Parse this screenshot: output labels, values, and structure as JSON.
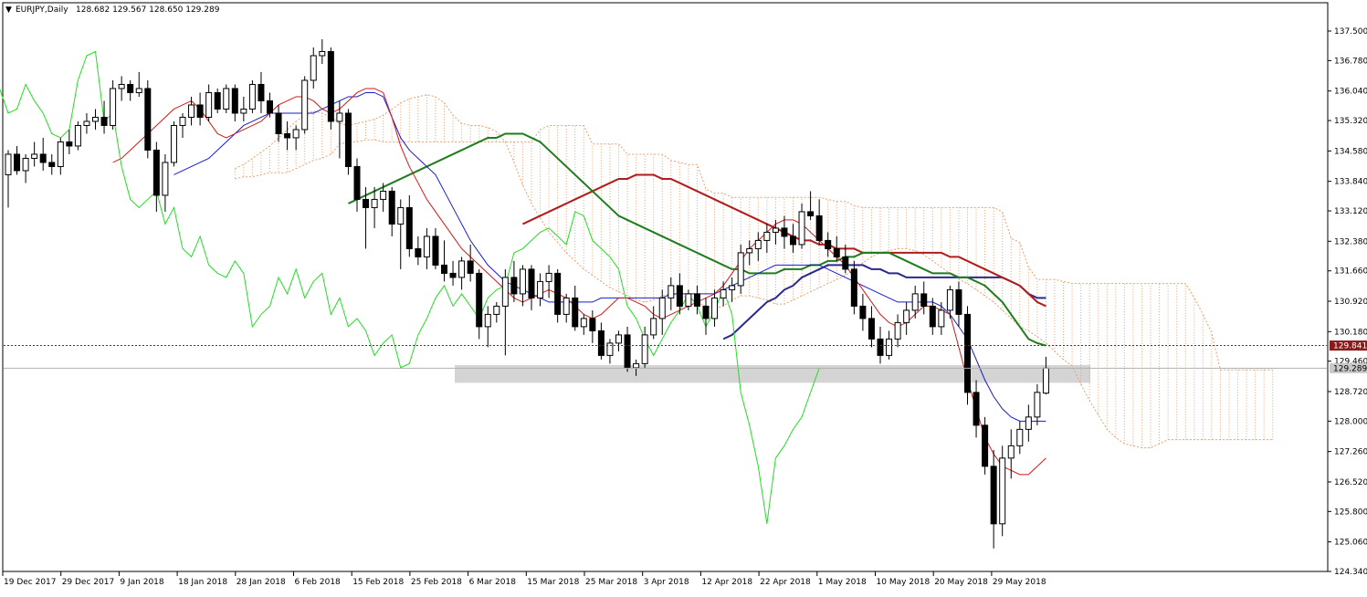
{
  "header": {
    "arrow": "▼",
    "symbol": "EURJPY,Daily",
    "ohlc": "128.682 129.567 128.650 129.289"
  },
  "price_scale": {
    "ticks": [
      "137.500",
      "136.780",
      "136.040",
      "135.320",
      "134.580",
      "133.840",
      "133.120",
      "132.380",
      "131.660",
      "130.920",
      "130.180",
      "129.460",
      "128.720",
      "128.000",
      "127.260",
      "126.520",
      "125.800",
      "125.060",
      "124.340"
    ],
    "ylim": [
      124.34,
      137.5
    ]
  },
  "time_scale": {
    "labels": [
      "19 Dec 2017",
      "29 Dec 2017",
      "9 Jan 2018",
      "18 Jan 2018",
      "28 Jan 2018",
      "6 Feb 2018",
      "15 Feb 2018",
      "25 Feb 2018",
      "6 Mar 2018",
      "15 Mar 2018",
      "25 Mar 2018",
      "3 Apr 2018",
      "12 Apr 2018",
      "22 Apr 2018",
      "1 May 2018",
      "10 May 2018",
      "20 May 2018",
      "29 May 2018"
    ]
  },
  "price_labels": {
    "ma_level": "129.841",
    "current": "129.289"
  },
  "colors": {
    "bull_body": "#ffffff",
    "bear_body": "#000000",
    "tenkan": "#d11a1a",
    "kijun": "#1a1ad1",
    "chikou": "#22dd22",
    "ma_fast": "#1e7d1e",
    "ma_mid": "#b01c1c",
    "ma_slow": "#2a2a8a",
    "cloud": "#e8a070",
    "support_zone": "#d4d4d4"
  },
  "chart_data": {
    "type": "candlestick",
    "ohlc": [
      [
        134.0,
        134.6,
        133.2,
        134.5
      ],
      [
        134.5,
        134.7,
        134.0,
        134.1
      ],
      [
        134.1,
        134.5,
        133.8,
        134.4
      ],
      [
        134.4,
        134.8,
        134.2,
        134.5
      ],
      [
        134.5,
        134.9,
        134.1,
        134.3
      ],
      [
        134.3,
        134.5,
        134.0,
        134.2
      ],
      [
        134.2,
        134.9,
        134.0,
        134.8
      ],
      [
        134.8,
        135.1,
        134.5,
        134.7
      ],
      [
        134.7,
        135.3,
        134.6,
        135.2
      ],
      [
        135.2,
        135.5,
        135.0,
        135.3
      ],
      [
        135.3,
        135.6,
        135.1,
        135.4
      ],
      [
        135.4,
        135.8,
        135.0,
        135.2
      ],
      [
        135.2,
        136.3,
        135.1,
        136.1
      ],
      [
        136.1,
        136.4,
        135.8,
        136.2
      ],
      [
        136.2,
        136.3,
        135.8,
        136.0
      ],
      [
        136.0,
        136.5,
        135.9,
        136.1
      ],
      [
        136.1,
        136.3,
        134.4,
        134.6
      ],
      [
        134.6,
        134.8,
        133.1,
        133.5
      ],
      [
        133.5,
        134.5,
        133.1,
        134.3
      ],
      [
        134.3,
        135.3,
        134.2,
        135.2
      ],
      [
        135.2,
        135.5,
        134.9,
        135.4
      ],
      [
        135.4,
        135.9,
        135.2,
        135.7
      ],
      [
        135.7,
        136.0,
        135.2,
        135.4
      ],
      [
        135.4,
        136.2,
        135.3,
        136.0
      ],
      [
        136.0,
        136.1,
        135.5,
        135.6
      ],
      [
        135.6,
        136.2,
        135.5,
        136.1
      ],
      [
        136.1,
        136.2,
        135.3,
        135.5
      ],
      [
        135.5,
        135.9,
        135.3,
        135.6
      ],
      [
        135.6,
        136.3,
        135.5,
        136.2
      ],
      [
        136.2,
        136.5,
        135.5,
        135.8
      ],
      [
        135.8,
        136.0,
        135.4,
        135.5
      ],
      [
        135.5,
        135.7,
        134.8,
        135.0
      ],
      [
        135.0,
        135.3,
        134.6,
        134.9
      ],
      [
        134.9,
        135.2,
        134.6,
        135.1
      ],
      [
        135.1,
        136.4,
        135.0,
        136.3
      ],
      [
        136.3,
        137.1,
        136.1,
        136.9
      ],
      [
        136.9,
        137.3,
        136.7,
        137.0
      ],
      [
        137.0,
        137.1,
        135.1,
        135.3
      ],
      [
        135.3,
        135.8,
        134.4,
        135.5
      ],
      [
        135.5,
        135.6,
        134.0,
        134.2
      ],
      [
        134.2,
        134.4,
        133.1,
        133.4
      ],
      [
        133.4,
        133.7,
        132.2,
        133.2
      ],
      [
        133.2,
        133.7,
        132.7,
        133.4
      ],
      [
        133.4,
        133.8,
        133.1,
        133.6
      ],
      [
        133.6,
        133.7,
        132.5,
        132.8
      ],
      [
        132.8,
        133.4,
        131.7,
        133.2
      ],
      [
        133.2,
        133.5,
        132.0,
        132.2
      ],
      [
        132.2,
        132.5,
        131.8,
        132.0
      ],
      [
        132.0,
        132.7,
        131.7,
        132.5
      ],
      [
        132.5,
        132.7,
        131.7,
        131.8
      ],
      [
        131.8,
        132.4,
        131.4,
        131.6
      ],
      [
        131.6,
        131.9,
        131.3,
        131.5
      ],
      [
        131.5,
        132.0,
        131.2,
        131.9
      ],
      [
        131.9,
        132.3,
        131.4,
        131.6
      ],
      [
        131.6,
        131.7,
        130.0,
        130.3
      ],
      [
        130.3,
        130.8,
        129.8,
        130.6
      ],
      [
        130.6,
        130.9,
        130.4,
        130.8
      ],
      [
        130.8,
        131.7,
        129.6,
        131.5
      ],
      [
        131.5,
        131.9,
        130.9,
        131.1
      ],
      [
        131.1,
        131.8,
        130.8,
        131.7
      ],
      [
        131.7,
        131.8,
        130.7,
        131.0
      ],
      [
        131.0,
        131.6,
        130.8,
        131.4
      ],
      [
        131.4,
        131.8,
        131.0,
        131.6
      ],
      [
        131.6,
        131.7,
        130.4,
        130.6
      ],
      [
        130.6,
        131.1,
        130.4,
        131.0
      ],
      [
        131.0,
        131.3,
        130.2,
        130.3
      ],
      [
        130.3,
        130.6,
        130.1,
        130.5
      ],
      [
        130.5,
        130.7,
        129.9,
        130.2
      ],
      [
        130.2,
        130.4,
        129.5,
        129.6
      ],
      [
        129.6,
        130.0,
        129.4,
        129.9
      ],
      [
        129.9,
        130.2,
        129.7,
        130.1
      ],
      [
        130.1,
        130.3,
        129.2,
        129.3
      ],
      [
        129.3,
        129.5,
        129.1,
        129.4
      ],
      [
        129.4,
        130.3,
        129.3,
        130.1
      ],
      [
        130.1,
        130.8,
        130.0,
        130.5
      ],
      [
        130.5,
        131.2,
        130.1,
        131.0
      ],
      [
        131.0,
        131.5,
        130.7,
        131.3
      ],
      [
        131.3,
        131.6,
        130.6,
        130.8
      ],
      [
        130.8,
        131.2,
        130.7,
        131.1
      ],
      [
        131.1,
        131.3,
        130.6,
        130.8
      ],
      [
        130.8,
        131.0,
        130.1,
        130.5
      ],
      [
        130.5,
        131.2,
        130.3,
        131.0
      ],
      [
        131.0,
        131.4,
        130.8,
        131.2
      ],
      [
        131.2,
        131.5,
        130.9,
        131.3
      ],
      [
        131.3,
        132.3,
        131.1,
        132.1
      ],
      [
        132.1,
        132.4,
        131.8,
        132.2
      ],
      [
        132.2,
        132.6,
        131.9,
        132.4
      ],
      [
        132.4,
        132.8,
        132.1,
        132.6
      ],
      [
        132.6,
        132.9,
        132.3,
        132.7
      ],
      [
        132.7,
        133.0,
        132.2,
        132.5
      ],
      [
        132.5,
        132.8,
        132.1,
        132.3
      ],
      [
        132.3,
        133.3,
        132.2,
        133.1
      ],
      [
        133.1,
        133.6,
        132.9,
        133.0
      ],
      [
        133.0,
        133.4,
        132.3,
        132.4
      ],
      [
        132.4,
        132.6,
        132.0,
        132.2
      ],
      [
        132.2,
        132.5,
        131.9,
        132.0
      ],
      [
        132.0,
        132.3,
        131.6,
        131.7
      ],
      [
        131.7,
        131.9,
        130.6,
        130.8
      ],
      [
        130.8,
        131.1,
        130.2,
        130.5
      ],
      [
        130.5,
        130.8,
        129.8,
        130.0
      ],
      [
        130.0,
        130.3,
        129.4,
        129.6
      ],
      [
        129.6,
        130.2,
        129.5,
        130.0
      ],
      [
        130.0,
        130.6,
        129.8,
        130.4
      ],
      [
        130.4,
        130.9,
        130.1,
        130.7
      ],
      [
        130.7,
        131.3,
        130.5,
        131.1
      ],
      [
        131.1,
        131.4,
        130.6,
        130.8
      ],
      [
        130.8,
        131.0,
        130.1,
        130.3
      ],
      [
        130.3,
        130.9,
        130.1,
        130.7
      ],
      [
        130.7,
        131.3,
        130.5,
        131.2
      ],
      [
        131.2,
        131.4,
        130.3,
        130.6
      ],
      [
        130.6,
        130.8,
        128.4,
        128.7
      ],
      [
        128.7,
        129.0,
        127.6,
        127.9
      ],
      [
        127.9,
        128.1,
        126.7,
        126.9
      ],
      [
        126.9,
        127.3,
        124.9,
        125.5
      ],
      [
        125.5,
        127.4,
        125.2,
        127.1
      ],
      [
        127.1,
        127.8,
        126.6,
        127.4
      ],
      [
        127.4,
        128.0,
        127.2,
        127.8
      ],
      [
        127.8,
        128.4,
        127.5,
        128.1
      ],
      [
        128.1,
        128.9,
        127.9,
        128.7
      ],
      [
        128.682,
        129.567,
        128.65,
        129.289
      ]
    ],
    "indicators": {
      "tenkan": [
        134.3,
        134.4,
        134.6,
        134.8,
        135.0,
        135.2,
        135.4,
        135.6,
        135.7,
        135.8,
        135.6,
        135.3,
        135.0,
        134.9,
        135.0,
        135.1,
        135.2,
        135.3,
        135.5,
        135.7,
        135.8,
        135.9,
        135.9,
        135.8,
        135.6,
        135.5,
        135.6,
        135.8,
        136.0,
        136.1,
        136.1,
        136.0,
        135.4,
        134.7,
        134.2,
        133.8,
        133.4,
        133.1,
        132.8,
        132.5,
        132.2,
        132.0,
        131.8,
        131.6,
        131.4,
        131.2,
        131.0,
        130.9,
        131.0,
        131.1,
        131.2,
        131.1,
        131.0,
        130.8,
        130.6,
        130.5,
        130.6,
        130.8,
        131.0,
        131.0,
        130.9,
        130.8,
        130.6,
        130.5,
        130.6,
        130.7,
        130.8,
        130.9,
        131.0,
        131.1,
        131.3,
        131.6,
        131.9,
        132.2,
        132.4,
        132.6,
        132.8,
        132.9,
        132.9,
        132.8,
        132.6,
        132.4,
        132.2,
        132.0,
        131.8,
        131.5,
        131.2,
        130.9,
        130.6,
        130.4,
        130.3,
        130.4,
        130.6,
        130.8,
        130.8,
        130.7,
        130.6,
        129.8,
        129.0,
        128.3,
        127.6,
        127.2,
        126.9,
        126.8,
        126.7,
        126.7,
        126.9,
        127.1
      ],
      "kijun": [
        134.0,
        134.1,
        134.2,
        134.3,
        134.4,
        134.6,
        134.8,
        135.0,
        135.2,
        135.3,
        135.4,
        135.5,
        135.5,
        135.5,
        135.5,
        135.5,
        135.5,
        135.6,
        135.7,
        135.8,
        135.9,
        135.9,
        136.0,
        136.0,
        135.9,
        135.4,
        134.9,
        134.6,
        134.4,
        134.2,
        134.0,
        133.6,
        133.2,
        132.8,
        132.4,
        132.1,
        131.8,
        131.6,
        131.4,
        131.3,
        131.2,
        131.1,
        131.0,
        130.9,
        130.9,
        130.9,
        130.9,
        130.9,
        130.9,
        131.0,
        131.0,
        131.0,
        131.0,
        131.0,
        131.0,
        131.0,
        131.0,
        131.1,
        131.1,
        131.1,
        131.1,
        131.1,
        131.1,
        131.2,
        131.3,
        131.4,
        131.5,
        131.6,
        131.7,
        131.8,
        131.8,
        131.8,
        131.8,
        131.8,
        131.8,
        131.7,
        131.6,
        131.5,
        131.4,
        131.3,
        131.2,
        131.1,
        131.0,
        130.9,
        130.9,
        130.9,
        130.9,
        130.9,
        130.8,
        130.6,
        130.3,
        130.0,
        129.5,
        129.0,
        128.6,
        128.3,
        128.1,
        128.0,
        128.0,
        128.0,
        128.0
      ],
      "ma_fast": [
        133.3,
        133.4,
        133.5,
        133.6,
        133.7,
        133.8,
        133.9,
        134.0,
        134.1,
        134.2,
        134.3,
        134.4,
        134.5,
        134.6,
        134.7,
        134.8,
        134.9,
        134.9,
        135.0,
        135.0,
        135.0,
        134.9,
        134.8,
        134.6,
        134.4,
        134.2,
        134.0,
        133.8,
        133.6,
        133.4,
        133.2,
        133.0,
        132.9,
        132.8,
        132.7,
        132.6,
        132.5,
        132.4,
        132.3,
        132.2,
        132.1,
        132.0,
        131.9,
        131.8,
        131.7,
        131.7,
        131.6,
        131.6,
        131.6,
        131.6,
        131.7,
        131.7,
        131.7,
        131.8,
        131.8,
        131.9,
        131.9,
        132.0,
        132.0,
        132.1,
        132.1,
        132.1,
        132.1,
        132.0,
        131.9,
        131.8,
        131.7,
        131.6,
        131.6,
        131.6,
        131.5,
        131.5,
        131.4,
        131.3,
        131.1,
        130.9,
        130.6,
        130.3,
        130.0,
        129.9,
        129.84
      ],
      "ma_mid": [
        132.8,
        132.9,
        133.0,
        133.1,
        133.2,
        133.3,
        133.4,
        133.5,
        133.6,
        133.7,
        133.8,
        133.9,
        133.9,
        134.0,
        134.0,
        134.0,
        133.9,
        133.9,
        133.8,
        133.7,
        133.6,
        133.5,
        133.4,
        133.3,
        133.2,
        133.1,
        133.0,
        132.9,
        132.8,
        132.7,
        132.6,
        132.5,
        132.4,
        132.4,
        132.3,
        132.3,
        132.2,
        132.2,
        132.2,
        132.1,
        132.1,
        132.1,
        132.1,
        132.1,
        132.1,
        132.1,
        132.1,
        132.1,
        132.1,
        132.0,
        132.0,
        131.9,
        131.8,
        131.7,
        131.6,
        131.5,
        131.4,
        131.3,
        131.1,
        130.9,
        130.8
      ],
      "ma_slow": [
        130.0,
        130.1,
        130.3,
        130.5,
        130.7,
        130.9,
        131.0,
        131.2,
        131.3,
        131.5,
        131.6,
        131.7,
        131.8,
        131.8,
        131.8,
        131.8,
        131.8,
        131.7,
        131.7,
        131.6,
        131.6,
        131.5,
        131.5,
        131.5,
        131.5,
        131.5,
        131.5,
        131.5,
        131.5,
        131.5,
        131.5,
        131.5,
        131.5,
        131.4,
        131.3,
        131.1,
        131.0,
        131.0
      ]
    },
    "support_zone": [
      129.0,
      129.3
    ],
    "ma_level": 129.841,
    "current_price": 129.289
  }
}
